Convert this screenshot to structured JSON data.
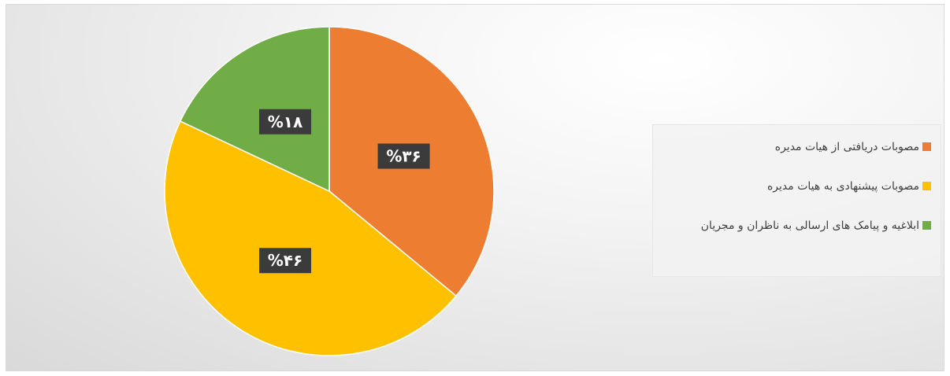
{
  "chart_data": {
    "type": "pie",
    "categories": [
      "مصوبات دریافتی از هیات مدیره",
      "مصوبات پیشنهادی به هیات مدیره",
      "ابلاغیه و پیامک های ارسالی به ناظران و مجریان"
    ],
    "values": [
      36,
      46,
      18
    ],
    "value_labels": [
      "%۳۶",
      "%۴۶",
      "%۱۸"
    ],
    "colors": [
      "#ed7d31",
      "#ffc000",
      "#70ad47"
    ],
    "legend": "right"
  }
}
